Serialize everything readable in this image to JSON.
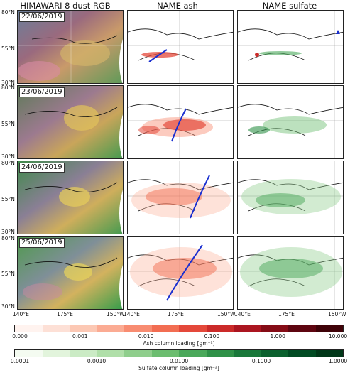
{
  "column_titles": [
    "HIMAWARI 8 dust RGB",
    "NAME ash",
    "NAME sulfate"
  ],
  "dates": [
    "22/06/2019",
    "23/06/2019",
    "24/06/2019",
    "25/06/2019"
  ],
  "lat_ticks": [
    "80°N",
    "55°N",
    "30°N"
  ],
  "lon_ticks": [
    "140°E",
    "175°E",
    "150°W"
  ],
  "ash_colorbar": {
    "title": "Ash column loading [gm⁻²]",
    "ticks": [
      "0.000",
      "0.001",
      "0.010",
      "0.100",
      "1.000",
      "10.000"
    ],
    "colors": [
      "#fff3ef",
      "#fde0d6",
      "#fcc8b4",
      "#fbab93",
      "#f88c71",
      "#f26d52",
      "#e4483a",
      "#cb2a29",
      "#ab1520",
      "#850c16",
      "#5e0510",
      "#3f0208"
    ]
  },
  "sulfate_colorbar": {
    "title": "Sulfate column loading [gm⁻²]",
    "ticks": [
      "0.0001",
      "0.0010",
      "0.0100",
      "0.1000",
      "1.0000"
    ],
    "colors": [
      "#f4fbf1",
      "#e2f4dc",
      "#cbebc5",
      "#b0dfa9",
      "#8fce8c",
      "#6bbd6f",
      "#4aa85a",
      "#2f9148",
      "#19783a",
      "#0b612e",
      "#014b23",
      "#003718"
    ]
  }
}
